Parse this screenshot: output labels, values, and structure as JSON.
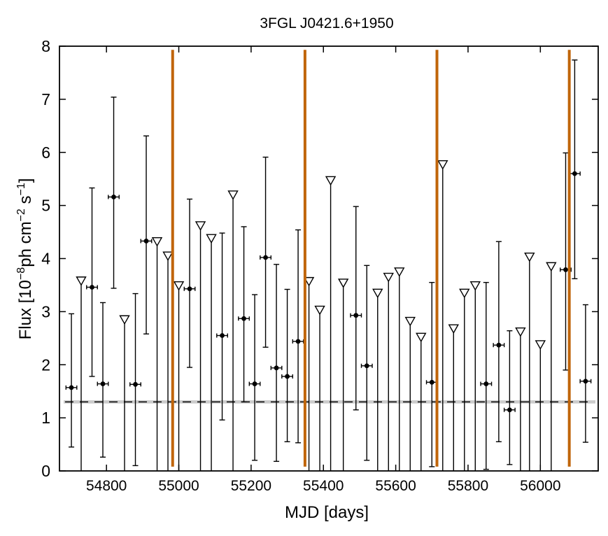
{
  "chart_data": {
    "type": "scatter",
    "title": "3FGL J0421.6+1950",
    "xlabel": "MJD [days]",
    "ylabel_parts": {
      "prefix": "Flux [10",
      "exp1": "−8",
      "mid": "ph cm",
      "exp2": "−2",
      "mid2": " s",
      "exp3": "−1",
      "suffix": "]"
    },
    "xlim": [
      54670,
      56160
    ],
    "ylim": [
      0,
      8
    ],
    "xticks": [
      54800,
      55000,
      55200,
      55400,
      55600,
      55800,
      56000
    ],
    "yticks": [
      0,
      1,
      2,
      3,
      4,
      5,
      6,
      7,
      8
    ],
    "grid": false,
    "colors": {
      "points": "#000000",
      "event_lines": "#c0650a",
      "mean_band": "#cccccc",
      "mean_line": "#000000"
    },
    "mean_flux": {
      "value": 1.3,
      "band": [
        1.27,
        1.33
      ]
    },
    "event_lines_mjd": [
      54983,
      55349,
      55714,
      56080
    ],
    "detections": [
      {
        "x": 54703,
        "xerr": 15,
        "y": 1.57,
        "ylo": 0.45,
        "yhi": 2.96
      },
      {
        "x": 54760,
        "xerr": 15,
        "y": 3.46,
        "ylo": 1.78,
        "yhi": 5.33
      },
      {
        "x": 54790,
        "xerr": 15,
        "y": 1.64,
        "ylo": 0.26,
        "yhi": 3.17
      },
      {
        "x": 54820,
        "xerr": 15,
        "y": 5.16,
        "ylo": 3.44,
        "yhi": 7.04
      },
      {
        "x": 54880,
        "xerr": 15,
        "y": 1.63,
        "ylo": 0.1,
        "yhi": 3.34
      },
      {
        "x": 54910,
        "xerr": 15,
        "y": 4.33,
        "ylo": 2.58,
        "yhi": 6.31
      },
      {
        "x": 55030,
        "xerr": 15,
        "y": 3.43,
        "ylo": 1.95,
        "yhi": 5.12
      },
      {
        "x": 55120,
        "xerr": 15,
        "y": 2.55,
        "ylo": 0.96,
        "yhi": 4.48
      },
      {
        "x": 55180,
        "xerr": 15,
        "y": 2.87,
        "ylo": 1.3,
        "yhi": 4.6
      },
      {
        "x": 55210,
        "xerr": 15,
        "y": 1.64,
        "ylo": 0.2,
        "yhi": 3.32
      },
      {
        "x": 55240,
        "xerr": 15,
        "y": 4.02,
        "ylo": 2.33,
        "yhi": 5.91
      },
      {
        "x": 55270,
        "xerr": 15,
        "y": 1.94,
        "ylo": 0.18,
        "yhi": 3.89
      },
      {
        "x": 55300,
        "xerr": 15,
        "y": 1.78,
        "ylo": 0.55,
        "yhi": 3.42
      },
      {
        "x": 55330,
        "xerr": 15,
        "y": 2.44,
        "ylo": 0.53,
        "yhi": 4.54
      },
      {
        "x": 55490,
        "xerr": 15,
        "y": 2.93,
        "ylo": 1.15,
        "yhi": 4.98
      },
      {
        "x": 55520,
        "xerr": 15,
        "y": 1.98,
        "ylo": 0.2,
        "yhi": 3.87
      },
      {
        "x": 55700,
        "xerr": 15,
        "y": 1.67,
        "ylo": 0.08,
        "yhi": 3.55
      },
      {
        "x": 55850,
        "xerr": 15,
        "y": 1.64,
        "ylo": 0.03,
        "yhi": 3.55
      },
      {
        "x": 55885,
        "xerr": 15,
        "y": 2.37,
        "ylo": 0.55,
        "yhi": 4.32
      },
      {
        "x": 55915,
        "xerr": 15,
        "y": 1.15,
        "ylo": 0.12,
        "yhi": 2.64
      },
      {
        "x": 56070,
        "xerr": 15,
        "y": 3.79,
        "ylo": 1.9,
        "yhi": 5.99
      },
      {
        "x": 56095,
        "xerr": 15,
        "y": 5.6,
        "ylo": 3.62,
        "yhi": 7.74
      },
      {
        "x": 56125,
        "xerr": 15,
        "y": 1.69,
        "ylo": 0.54,
        "yhi": 3.13
      }
    ],
    "upper_limits": [
      {
        "x": 54730,
        "y": 3.58
      },
      {
        "x": 54850,
        "y": 2.85
      },
      {
        "x": 54940,
        "y": 4.32
      },
      {
        "x": 54970,
        "y": 4.05
      },
      {
        "x": 55000,
        "y": 3.49
      },
      {
        "x": 55060,
        "y": 4.62
      },
      {
        "x": 55090,
        "y": 4.38
      },
      {
        "x": 55150,
        "y": 5.2
      },
      {
        "x": 55360,
        "y": 3.57
      },
      {
        "x": 55390,
        "y": 3.03
      },
      {
        "x": 55420,
        "y": 5.47
      },
      {
        "x": 55455,
        "y": 3.54
      },
      {
        "x": 55550,
        "y": 3.35
      },
      {
        "x": 55580,
        "y": 3.65
      },
      {
        "x": 55610,
        "y": 3.75
      },
      {
        "x": 55640,
        "y": 2.82
      },
      {
        "x": 55670,
        "y": 2.52
      },
      {
        "x": 55730,
        "y": 5.77
      },
      {
        "x": 55760,
        "y": 2.68
      },
      {
        "x": 55790,
        "y": 3.35
      },
      {
        "x": 55820,
        "y": 3.49
      },
      {
        "x": 55945,
        "y": 2.62
      },
      {
        "x": 55970,
        "y": 4.03
      },
      {
        "x": 56000,
        "y": 2.38
      },
      {
        "x": 56030,
        "y": 3.85
      }
    ]
  }
}
